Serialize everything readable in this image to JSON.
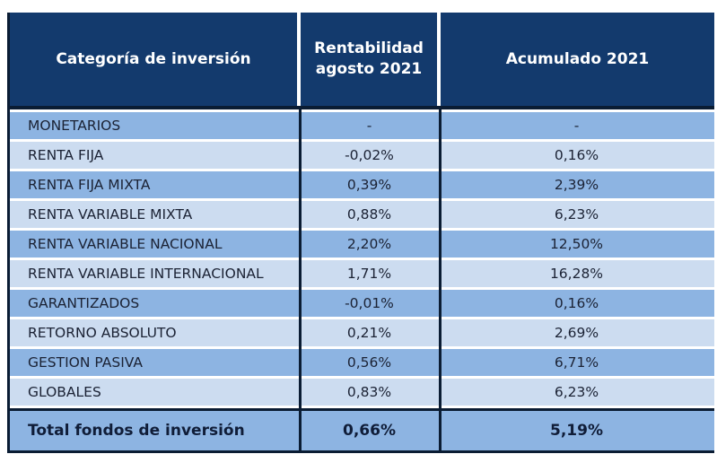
{
  "chart_data": {
    "type": "table",
    "columns": [
      "Categoría de inversión",
      "Rentabilidad agosto 2021",
      "Acumulado 2021"
    ],
    "rows": [
      {
        "category": "MONETARIOS",
        "monthly_return": "-",
        "accumulated": "-"
      },
      {
        "category": "RENTA FIJA",
        "monthly_return": "-0,02%",
        "accumulated": "0,16%"
      },
      {
        "category": "RENTA FIJA MIXTA",
        "monthly_return": "0,39%",
        "accumulated": "2,39%"
      },
      {
        "category": "RENTA VARIABLE MIXTA",
        "monthly_return": "0,88%",
        "accumulated": "6,23%"
      },
      {
        "category": "RENTA VARIABLE NACIONAL",
        "monthly_return": "2,20%",
        "accumulated": "12,50%"
      },
      {
        "category": "RENTA VARIABLE INTERNACIONAL",
        "monthly_return": "1,71%",
        "accumulated": "16,28%"
      },
      {
        "category": "GARANTIZADOS",
        "monthly_return": "-0,01%",
        "accumulated": "0,16%"
      },
      {
        "category": "RETORNO ABSOLUTO",
        "monthly_return": "0,21%",
        "accumulated": "2,69%"
      },
      {
        "category": "GESTION PASIVA",
        "monthly_return": "0,56%",
        "accumulated": "6,71%"
      },
      {
        "category": "GLOBALES",
        "monthly_return": "0,83%",
        "accumulated": "6,23%"
      }
    ],
    "total_row": {
      "category": "Total fondos de inversión",
      "monthly_return": "0,66%",
      "accumulated": "5,19%"
    },
    "numeric": {
      "monthly_return_pct": [
        null,
        -0.02,
        0.39,
        0.88,
        2.2,
        1.71,
        -0.01,
        0.21,
        0.56,
        0.83
      ],
      "accumulated_pct": [
        null,
        0.16,
        2.39,
        6.23,
        12.5,
        16.28,
        0.16,
        2.69,
        6.71,
        6.23
      ],
      "total_monthly_return_pct": 0.66,
      "total_accumulated_pct": 5.19
    },
    "colors": {
      "header_bg": "#133a6d",
      "header_text": "#ffffff",
      "row_medium": "#8db4e2",
      "row_light": "#ccdcf0",
      "border_dark": "#0a1c33",
      "body_text": "#1b2234"
    }
  }
}
